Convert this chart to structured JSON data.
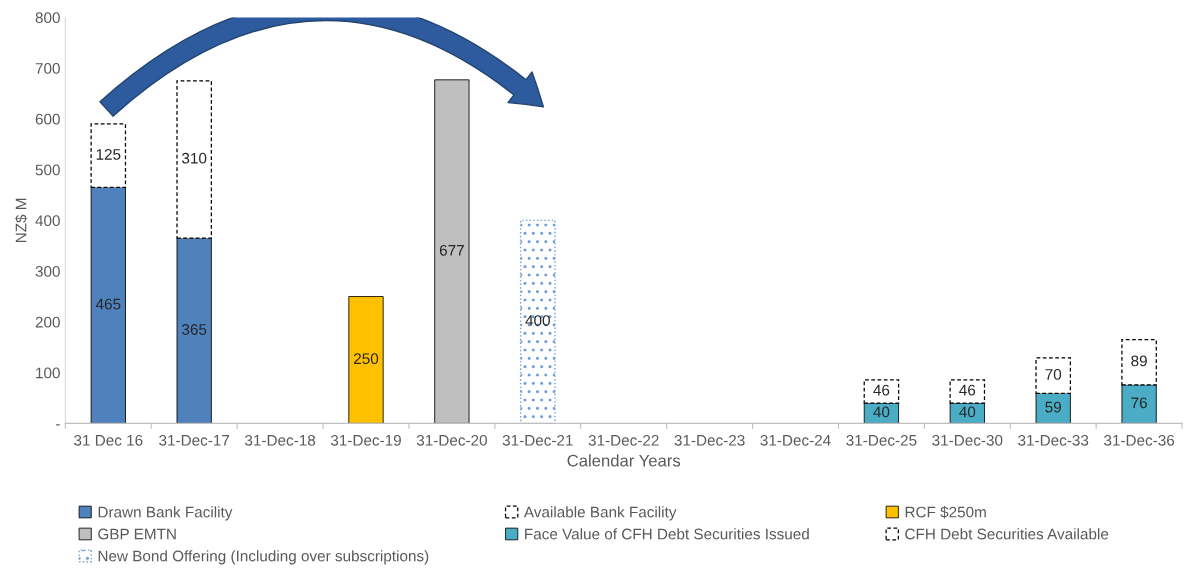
{
  "chart_data": {
    "type": "bar",
    "stacked": true,
    "xlabel": "Calendar Years",
    "ylabel": "NZ$ M",
    "categories": [
      "31 Dec 16",
      "31-Dec-17",
      "31-Dec-18",
      "31-Dec-19",
      "31-Dec-20",
      "31-Dec-21",
      "31-Dec-22",
      "31-Dec-23",
      "31-Dec-24",
      "31-Dec-25",
      "31-Dec-30",
      "31-Dec-33",
      "31-Dec-36"
    ],
    "series": [
      {
        "name": "Drawn Bank Facility",
        "color": "#4f81bd",
        "values": [
          465,
          365,
          null,
          null,
          null,
          null,
          null,
          null,
          null,
          null,
          null,
          null,
          null
        ]
      },
      {
        "name": "Available Bank Facility",
        "color": "#ffffff",
        "line_style": "dashed",
        "values": [
          125,
          310,
          null,
          null,
          null,
          null,
          null,
          null,
          null,
          null,
          null,
          null,
          null
        ]
      },
      {
        "name": "RCF $250m",
        "color": "#ffc000",
        "values": [
          null,
          null,
          null,
          250,
          null,
          null,
          null,
          null,
          null,
          null,
          null,
          null,
          null
        ]
      },
      {
        "name": "GBP EMTN",
        "color": "#bfbfbf",
        "values": [
          null,
          null,
          null,
          null,
          677,
          null,
          null,
          null,
          null,
          null,
          null,
          null,
          null
        ]
      },
      {
        "name": "Face Value of CFH Debt Securities Issued",
        "color": "#4bacc6",
        "values": [
          null,
          null,
          null,
          null,
          null,
          null,
          null,
          null,
          null,
          40,
          40,
          59,
          76
        ]
      },
      {
        "name": "CFH Debt Securities Available",
        "color": "#ffffff",
        "line_style": "dashed",
        "values": [
          null,
          null,
          null,
          null,
          null,
          null,
          null,
          null,
          null,
          46,
          46,
          70,
          89
        ]
      },
      {
        "name": "New Bond Offering (Including over subscriptions)",
        "color": "#6f9ed8",
        "line_style": "dotted",
        "values": [
          null,
          null,
          null,
          null,
          null,
          400,
          null,
          null,
          null,
          null,
          null,
          null,
          null
        ]
      }
    ],
    "ylim": [
      0,
      800
    ],
    "yticks": [
      {
        "value": 0,
        "label": "-"
      },
      100,
      200,
      300,
      400,
      500,
      600,
      700,
      800
    ],
    "data_labels": true,
    "grid": false,
    "legend": "bottom"
  }
}
